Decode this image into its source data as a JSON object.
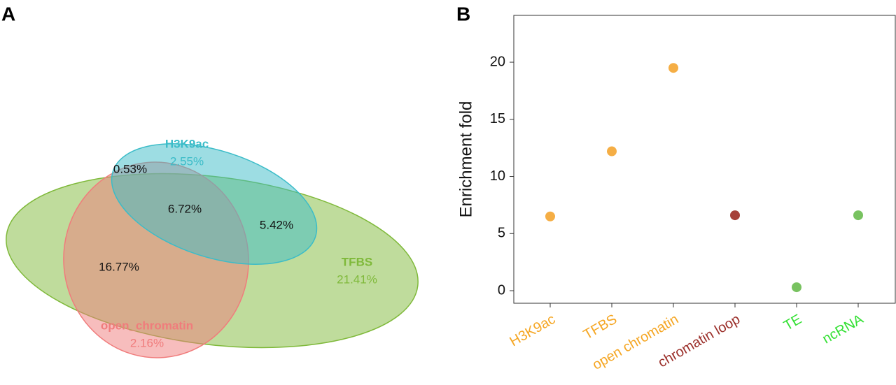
{
  "chart_data": [
    {
      "type": "venn",
      "panel": "A",
      "sets": [
        {
          "name": "H3K9ac",
          "color": "#3bbcc8",
          "value": 2.55,
          "value_label": "2.55%"
        },
        {
          "name": "TFBS",
          "color": "#7fb93a",
          "value": 21.41,
          "value_label": "21.41%"
        },
        {
          "name": "open_chromatin",
          "color": "#f07c7c",
          "value": 2.16,
          "value_label": "2.16%"
        }
      ],
      "regions": {
        "values": [
          0.53,
          6.72,
          5.42,
          16.77
        ],
        "value_labels": [
          "0.53%",
          "6.72%",
          "5.42%",
          "16.77%"
        ]
      }
    },
    {
      "type": "dot",
      "panel": "B",
      "ylabel": "Enrichment fold",
      "categories": [
        "H3K9ac",
        "TFBS",
        "open chromatin",
        "chromatin loop",
        "TE",
        "ncRNA"
      ],
      "values": [
        6.5,
        12.2,
        19.5,
        6.6,
        0.3,
        6.6
      ],
      "colors": [
        "#f5ae45",
        "#f5ae45",
        "#f5ae45",
        "#a6413a",
        "#78c260",
        "#78c260"
      ],
      "label_colors": [
        "#f5a623",
        "#f5a623",
        "#f5a623",
        "#9b2f2a",
        "#33e033",
        "#33e033"
      ],
      "ylim": [
        -1.1,
        24.1
      ],
      "yticks": [
        0,
        5,
        10,
        15,
        20
      ]
    }
  ]
}
